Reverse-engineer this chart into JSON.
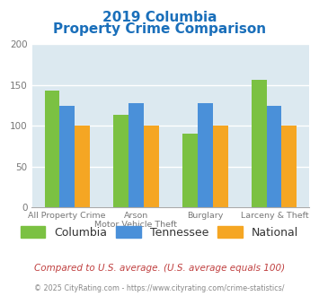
{
  "title_line1": "2019 Columbia",
  "title_line2": "Property Crime Comparison",
  "title_color": "#1a6fba",
  "x_labels_line1": [
    "All Property Crime",
    "Arson",
    "Burglary",
    "Larceny & Theft"
  ],
  "x_labels_line2": [
    "",
    "Motor Vehicle Theft",
    "",
    ""
  ],
  "series": {
    "Columbia": [
      143,
      113,
      90,
      157
    ],
    "Tennessee": [
      125,
      128,
      128,
      125
    ],
    "National": [
      100,
      100,
      100,
      100
    ]
  },
  "colors": {
    "Columbia": "#7bc142",
    "Tennessee": "#4a90d9",
    "National": "#f5a623"
  },
  "ylim": [
    0,
    200
  ],
  "yticks": [
    0,
    50,
    100,
    150,
    200
  ],
  "plot_bg": "#dce9f0",
  "grid_color": "#ffffff",
  "footnote": "Compared to U.S. average. (U.S. average equals 100)",
  "footnote_color": "#c04040",
  "copyright": "© 2025 CityRating.com - https://www.cityrating.com/crime-statistics/",
  "copyright_color": "#888888",
  "bar_width": 0.22
}
